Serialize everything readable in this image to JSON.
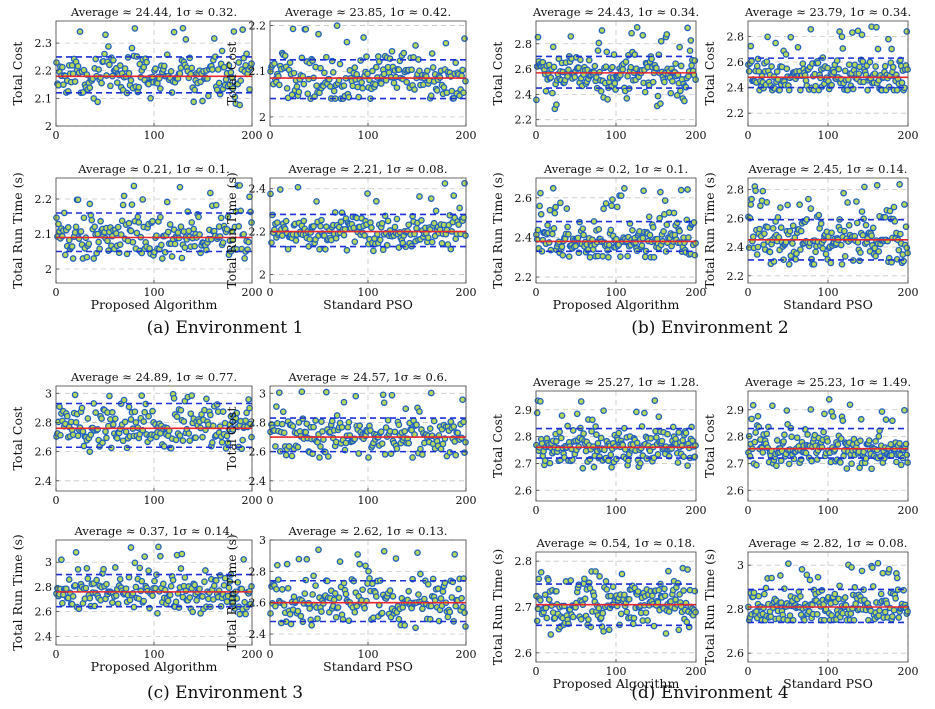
{
  "colors": {
    "mean": "#e8262b",
    "sigma": "#1b2fd8",
    "grid": "#c8c8c8",
    "marker_edge": "#1f5fbf",
    "marker_fill": "#b5d858",
    "axis": "#444444"
  },
  "captions": [
    "(a) Environment 1",
    "(b) Environment 2",
    "(c) Environment 3",
    "(d) Environment 4"
  ],
  "chart_data": [
    {
      "type": "scatter",
      "panel": "a",
      "title": "Average ≈ 24.44, 1σ ≈ 0.32.",
      "ylabel": "Total Cost",
      "xlabel": "",
      "xlim": [
        0,
        200
      ],
      "ylim": [
        2.0,
        2.38
      ],
      "yticks": [
        2,
        2.1,
        2.2,
        2.3
      ],
      "xticks": [
        0,
        100,
        200
      ],
      "mean": 2.18,
      "upper": 2.25,
      "lower": 2.12,
      "n": 200,
      "range": [
        2.05,
        2.36
      ]
    },
    {
      "type": "scatter",
      "panel": "a",
      "title": "Average ≈ 23.85, 1σ ≈ 0.42.",
      "ylabel": "Total Cost",
      "xlabel": "",
      "xlim": [
        0,
        200
      ],
      "ylim": [
        1.98,
        2.21
      ],
      "yticks": [
        2,
        2.1,
        2.2
      ],
      "xticks": [
        0,
        100,
        200
      ],
      "mean": 2.085,
      "upper": 2.125,
      "lower": 2.04,
      "n": 200,
      "range": [
        2.04,
        2.2
      ]
    },
    {
      "type": "scatter",
      "panel": "a",
      "title": "Average ≈ 0.21, 1σ ≈ 0.1.",
      "ylabel": "Total Run Time (s)",
      "xlabel": "Proposed Algorithm",
      "xlim": [
        0,
        200
      ],
      "ylim": [
        1.96,
        2.26
      ],
      "yticks": [
        2,
        2.1,
        2.2
      ],
      "xticks": [
        0,
        100,
        200
      ],
      "mean": 2.09,
      "upper": 2.16,
      "lower": 2.05,
      "n": 200,
      "range": [
        2.03,
        2.24
      ]
    },
    {
      "type": "scatter",
      "panel": "a",
      "title": "Average ≈ 2.21, 1σ ≈ 0.08.",
      "ylabel": "Total Run Time (s)",
      "xlabel": "Standard PSO",
      "xlim": [
        0,
        200
      ],
      "ylim": [
        1.96,
        2.45
      ],
      "yticks": [
        2,
        2.2,
        2.4
      ],
      "xticks": [
        0,
        100,
        200
      ],
      "mean": 2.2,
      "upper": 2.28,
      "lower": 2.13,
      "n": 200,
      "range": [
        2.11,
        2.43
      ]
    },
    {
      "type": "scatter",
      "panel": "b",
      "title": "Average ≈ 24.43, 1σ ≈ 0.34.",
      "ylabel": "Total Cost",
      "xlabel": "",
      "xlim": [
        0,
        200
      ],
      "ylim": [
        2.15,
        2.98
      ],
      "yticks": [
        2.2,
        2.4,
        2.6,
        2.8
      ],
      "xticks": [
        0,
        100,
        200
      ],
      "mean": 2.57,
      "upper": 2.7,
      "lower": 2.45,
      "n": 200,
      "range": [
        2.28,
        2.95
      ]
    },
    {
      "type": "scatter",
      "panel": "b",
      "title": "Average ≈ 23.79, 1σ ≈ 0.34.",
      "ylabel": "Total Cost",
      "xlabel": "",
      "xlim": [
        0,
        200
      ],
      "ylim": [
        2.1,
        2.92
      ],
      "yticks": [
        2.2,
        2.4,
        2.6,
        2.8
      ],
      "xticks": [
        0,
        100,
        200
      ],
      "mean": 2.48,
      "upper": 2.63,
      "lower": 2.4,
      "n": 200,
      "range": [
        2.38,
        2.88
      ]
    },
    {
      "type": "scatter",
      "panel": "b",
      "title": "Average ≈ 0.2, 1σ ≈ 0.1.",
      "ylabel": "Total Run Time (s)",
      "xlabel": "Proposed Algorithm",
      "xlim": [
        0,
        200
      ],
      "ylim": [
        2.17,
        2.7
      ],
      "yticks": [
        2.2,
        2.4,
        2.6
      ],
      "xticks": [
        0,
        100,
        200
      ],
      "mean": 2.38,
      "upper": 2.48,
      "lower": 2.33,
      "n": 200,
      "range": [
        2.3,
        2.65
      ]
    },
    {
      "type": "scatter",
      "panel": "b",
      "title": "Average ≈ 2.45, 1σ ≈ 0.14.",
      "ylabel": "Total Run Time (s)",
      "xlabel": "Standard PSO",
      "xlim": [
        0,
        200
      ],
      "ylim": [
        2.15,
        2.88
      ],
      "yticks": [
        2.2,
        2.4,
        2.6,
        2.8
      ],
      "xticks": [
        0,
        100,
        200
      ],
      "mean": 2.45,
      "upper": 2.59,
      "lower": 2.31,
      "n": 200,
      "range": [
        2.28,
        2.84
      ]
    },
    {
      "type": "scatter",
      "panel": "c",
      "title": "Average ≈ 24.89, 1σ ≈ 0.77.",
      "ylabel": "Total Cost",
      "xlabel": "",
      "xlim": [
        0,
        200
      ],
      "ylim": [
        2.33,
        3.05
      ],
      "yticks": [
        2.4,
        2.6,
        2.8,
        3
      ],
      "xticks": [
        0,
        100,
        200
      ],
      "mean": 2.76,
      "upper": 2.93,
      "lower": 2.63,
      "n": 200,
      "range": [
        2.6,
        3.0
      ]
    },
    {
      "type": "scatter",
      "panel": "c",
      "title": "Average ≈ 24.57, 1σ ≈ 0.6.",
      "ylabel": "Total Cost",
      "xlabel": "",
      "xlim": [
        0,
        200
      ],
      "ylim": [
        2.33,
        3.05
      ],
      "yticks": [
        2.4,
        2.6,
        2.8,
        3
      ],
      "xticks": [
        0,
        100,
        200
      ],
      "mean": 2.7,
      "upper": 2.83,
      "lower": 2.6,
      "n": 200,
      "range": [
        2.56,
        3.02
      ]
    },
    {
      "type": "scatter",
      "panel": "c",
      "title": "Average ≈ 0.37, 1σ ≈ 0.14.",
      "ylabel": "Total Run Time (s)",
      "xlabel": "Proposed Algorithm",
      "xlim": [
        0,
        200
      ],
      "ylim": [
        2.33,
        3.18
      ],
      "yticks": [
        2.4,
        2.6,
        2.8,
        3
      ],
      "xticks": [
        0,
        100,
        200
      ],
      "mean": 2.76,
      "upper": 2.9,
      "lower": 2.64,
      "n": 200,
      "range": [
        2.58,
        3.14
      ]
    },
    {
      "type": "scatter",
      "panel": "c",
      "title": "Average ≈ 2.62, 1σ ≈ 0.13.",
      "ylabel": "Total Run Time (s)",
      "xlabel": "Standard PSO",
      "xlim": [
        0,
        200
      ],
      "ylim": [
        2.33,
        3.0
      ],
      "yticks": [
        2.4,
        2.6,
        2.8,
        3
      ],
      "xticks": [
        0,
        100,
        200
      ],
      "mean": 2.6,
      "upper": 2.74,
      "lower": 2.48,
      "n": 200,
      "range": [
        2.44,
        2.94
      ]
    },
    {
      "type": "scatter",
      "panel": "d",
      "title": "Average ≈ 25.27, 1σ ≈ 1.28.",
      "ylabel": "Total Cost",
      "xlabel": "",
      "xlim": [
        0,
        200
      ],
      "ylim": [
        2.56,
        2.97
      ],
      "yticks": [
        2.6,
        2.7,
        2.8,
        2.9
      ],
      "xticks": [
        0,
        100,
        200
      ],
      "mean": 2.76,
      "upper": 2.83,
      "lower": 2.72,
      "n": 200,
      "range": [
        2.68,
        2.94
      ]
    },
    {
      "type": "scatter",
      "panel": "d",
      "title": "Average ≈ 25.23, 1σ ≈ 1.49.",
      "ylabel": "Total Cost",
      "xlabel": "",
      "xlim": [
        0,
        200
      ],
      "ylim": [
        2.56,
        2.97
      ],
      "yticks": [
        2.6,
        2.7,
        2.8,
        2.9
      ],
      "xticks": [
        0,
        100,
        200
      ],
      "mean": 2.755,
      "upper": 2.83,
      "lower": 2.72,
      "n": 200,
      "range": [
        2.68,
        2.94
      ]
    },
    {
      "type": "scatter",
      "panel": "d",
      "title": "Average ≈ 0.54, 1σ ≈ 0.18.",
      "ylabel": "Total Run Time (s)",
      "xlabel": "Proposed Algorithm",
      "xlim": [
        0,
        200
      ],
      "ylim": [
        2.58,
        2.82
      ],
      "yticks": [
        2.6,
        2.7,
        2.8
      ],
      "xticks": [
        0,
        100,
        200
      ],
      "mean": 2.705,
      "upper": 2.75,
      "lower": 2.66,
      "n": 200,
      "range": [
        2.64,
        2.79
      ]
    },
    {
      "type": "scatter",
      "panel": "d",
      "title": "Average ≈ 2.82, 1σ ≈ 0.08.",
      "ylabel": "Total Run Time (s)",
      "xlabel": "Standard PSO",
      "xlim": [
        0,
        200
      ],
      "ylim": [
        2.56,
        3.06
      ],
      "yticks": [
        2.6,
        2.8,
        3
      ],
      "xticks": [
        0,
        100,
        200
      ],
      "mean": 2.81,
      "upper": 2.89,
      "lower": 2.74,
      "n": 200,
      "range": [
        2.75,
        3.02
      ]
    }
  ]
}
